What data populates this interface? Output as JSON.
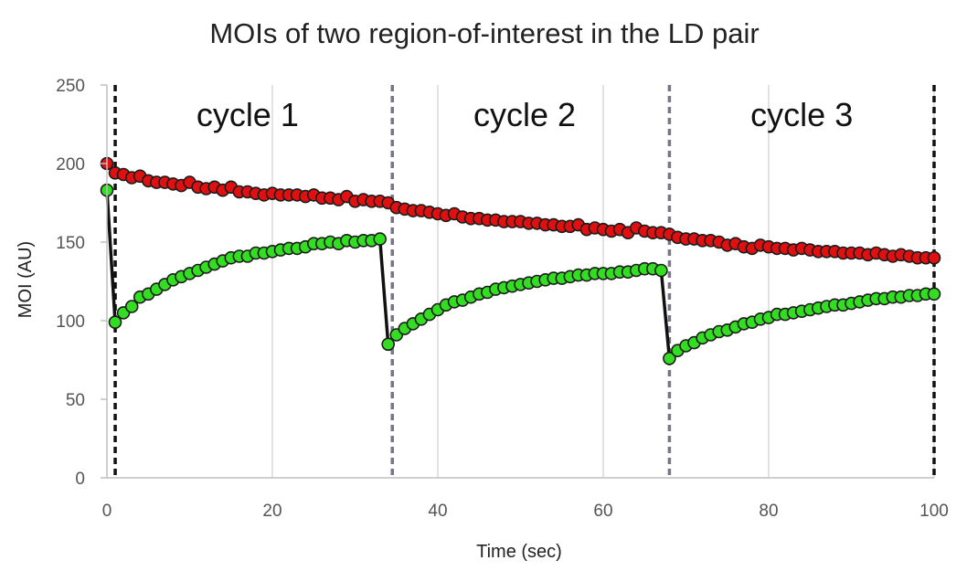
{
  "chart_data": {
    "type": "scatter",
    "title": "MOIs of two region-of-interest  in the LD pair",
    "xlabel": "Time (sec)",
    "ylabel": "MOI (AU)",
    "xlim": [
      0,
      100
    ],
    "ylim": [
      0,
      250
    ],
    "x_ticks": [
      "0",
      "20",
      "40",
      "60",
      "80",
      "100"
    ],
    "y_ticks": [
      "0",
      "50",
      "100",
      "150",
      "200",
      "250"
    ],
    "x_tick_values": [
      0,
      20,
      40,
      60,
      80,
      100
    ],
    "y_tick_values": [
      0,
      50,
      100,
      150,
      200,
      250
    ],
    "grid": "vertical",
    "legend": "none",
    "annotations": [
      {
        "text": "cycle 1",
        "x": 17
      },
      {
        "text": "cycle 2",
        "x": 50.5
      },
      {
        "text": "cycle 3",
        "x": 84
      }
    ],
    "cycle_boundaries": [
      {
        "x": 1,
        "color": "#111111"
      },
      {
        "x": 34.5,
        "color": "#777788"
      },
      {
        "x": 68,
        "color": "#777788"
      },
      {
        "x": 100,
        "color": "#111111"
      }
    ],
    "series": [
      {
        "color": "#e01010",
        "connector": false,
        "x": [
          0,
          1,
          2,
          3,
          4,
          5,
          6,
          7,
          8,
          9,
          10,
          11,
          12,
          13,
          14,
          15,
          16,
          17,
          18,
          19,
          20,
          21,
          22,
          23,
          24,
          25,
          26,
          27,
          28,
          29,
          30,
          31,
          32,
          33,
          34,
          35,
          36,
          37,
          38,
          39,
          40,
          41,
          42,
          43,
          44,
          45,
          46,
          47,
          48,
          49,
          50,
          51,
          52,
          53,
          54,
          55,
          56,
          57,
          58,
          59,
          60,
          61,
          62,
          63,
          64,
          65,
          66,
          67,
          68,
          69,
          70,
          71,
          72,
          73,
          74,
          75,
          76,
          77,
          78,
          79,
          80,
          81,
          82,
          83,
          84,
          85,
          86,
          87,
          88,
          89,
          90,
          91,
          92,
          93,
          94,
          95,
          96,
          97,
          98,
          99,
          100
        ],
        "y": [
          200,
          194,
          193,
          191,
          192,
          189,
          188,
          188,
          187,
          186,
          188,
          185,
          184,
          185,
          183,
          185,
          182,
          182,
          181,
          180,
          181,
          180,
          180,
          180,
          179,
          180,
          178,
          178,
          177,
          179,
          176,
          177,
          176,
          176,
          175,
          172,
          171,
          170,
          170,
          169,
          168,
          167,
          168,
          166,
          165,
          165,
          164,
          164,
          163,
          163,
          163,
          162,
          162,
          161,
          161,
          160,
          160,
          161,
          158,
          159,
          158,
          157,
          158,
          156,
          159,
          157,
          156,
          156,
          155,
          153,
          152,
          152,
          151,
          151,
          150,
          148,
          149,
          147,
          146,
          148,
          147,
          146,
          146,
          145,
          146,
          145,
          144,
          144,
          144,
          143,
          143,
          143,
          142,
          143,
          142,
          141,
          142,
          141,
          140,
          140,
          140
        ]
      },
      {
        "color": "#33dd22",
        "connector": true,
        "x": [
          0,
          1,
          2,
          3,
          4,
          5,
          6,
          7,
          8,
          9,
          10,
          11,
          12,
          13,
          14,
          15,
          16,
          17,
          18,
          19,
          20,
          21,
          22,
          23,
          24,
          25,
          26,
          27,
          28,
          29,
          30,
          31,
          32,
          33,
          34,
          35,
          36,
          37,
          38,
          39,
          40,
          41,
          42,
          43,
          44,
          45,
          46,
          47,
          48,
          49,
          50,
          51,
          52,
          53,
          54,
          55,
          56,
          57,
          58,
          59,
          60,
          61,
          62,
          63,
          64,
          65,
          66,
          67,
          68,
          69,
          70,
          71,
          72,
          73,
          74,
          75,
          76,
          77,
          78,
          79,
          80,
          81,
          82,
          83,
          84,
          85,
          86,
          87,
          88,
          89,
          90,
          91,
          92,
          93,
          94,
          95,
          96,
          97,
          98,
          99,
          100
        ],
        "y": [
          183,
          99,
          105,
          109,
          115,
          117,
          120,
          123,
          126,
          128,
          130,
          132,
          134,
          136,
          138,
          140,
          141,
          141,
          143,
          143,
          144,
          145,
          146,
          146,
          147,
          149,
          149,
          150,
          149,
          151,
          150,
          151,
          151,
          152,
          85,
          91,
          95,
          98,
          101,
          104,
          107,
          110,
          112,
          113,
          115,
          117,
          118,
          120,
          121,
          122,
          123,
          124,
          125,
          126,
          127,
          127,
          128,
          129,
          129,
          130,
          130,
          130,
          131,
          131,
          132,
          133,
          133,
          132,
          76,
          81,
          84,
          86,
          89,
          91,
          93,
          94,
          96,
          98,
          99,
          101,
          102,
          104,
          104,
          105,
          106,
          107,
          108,
          109,
          110,
          110,
          111,
          112,
          113,
          114,
          114,
          115,
          115,
          116,
          116,
          117,
          117
        ]
      }
    ]
  }
}
